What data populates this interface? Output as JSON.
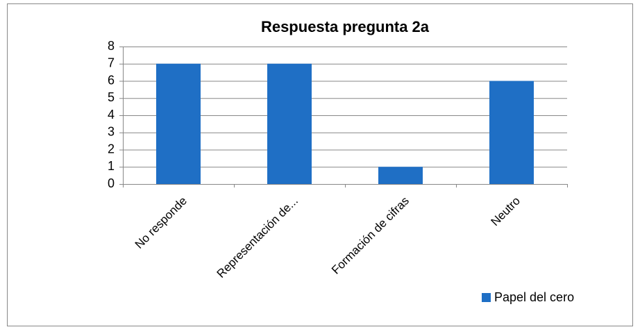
{
  "chart_data": {
    "type": "bar",
    "title": "Respuesta pregunta 2a",
    "categories": [
      "No responde",
      "Representación de...",
      "Formación de cifras",
      "Neutro"
    ],
    "series": [
      {
        "name": "Papel del cero",
        "color": "#1f6fc5",
        "values": [
          7,
          7,
          1,
          6
        ]
      }
    ],
    "ylim": [
      0,
      8
    ],
    "yticks": [
      0,
      1,
      2,
      3,
      4,
      5,
      6,
      7,
      8
    ],
    "grid": true,
    "legend_position": "lower-right"
  }
}
